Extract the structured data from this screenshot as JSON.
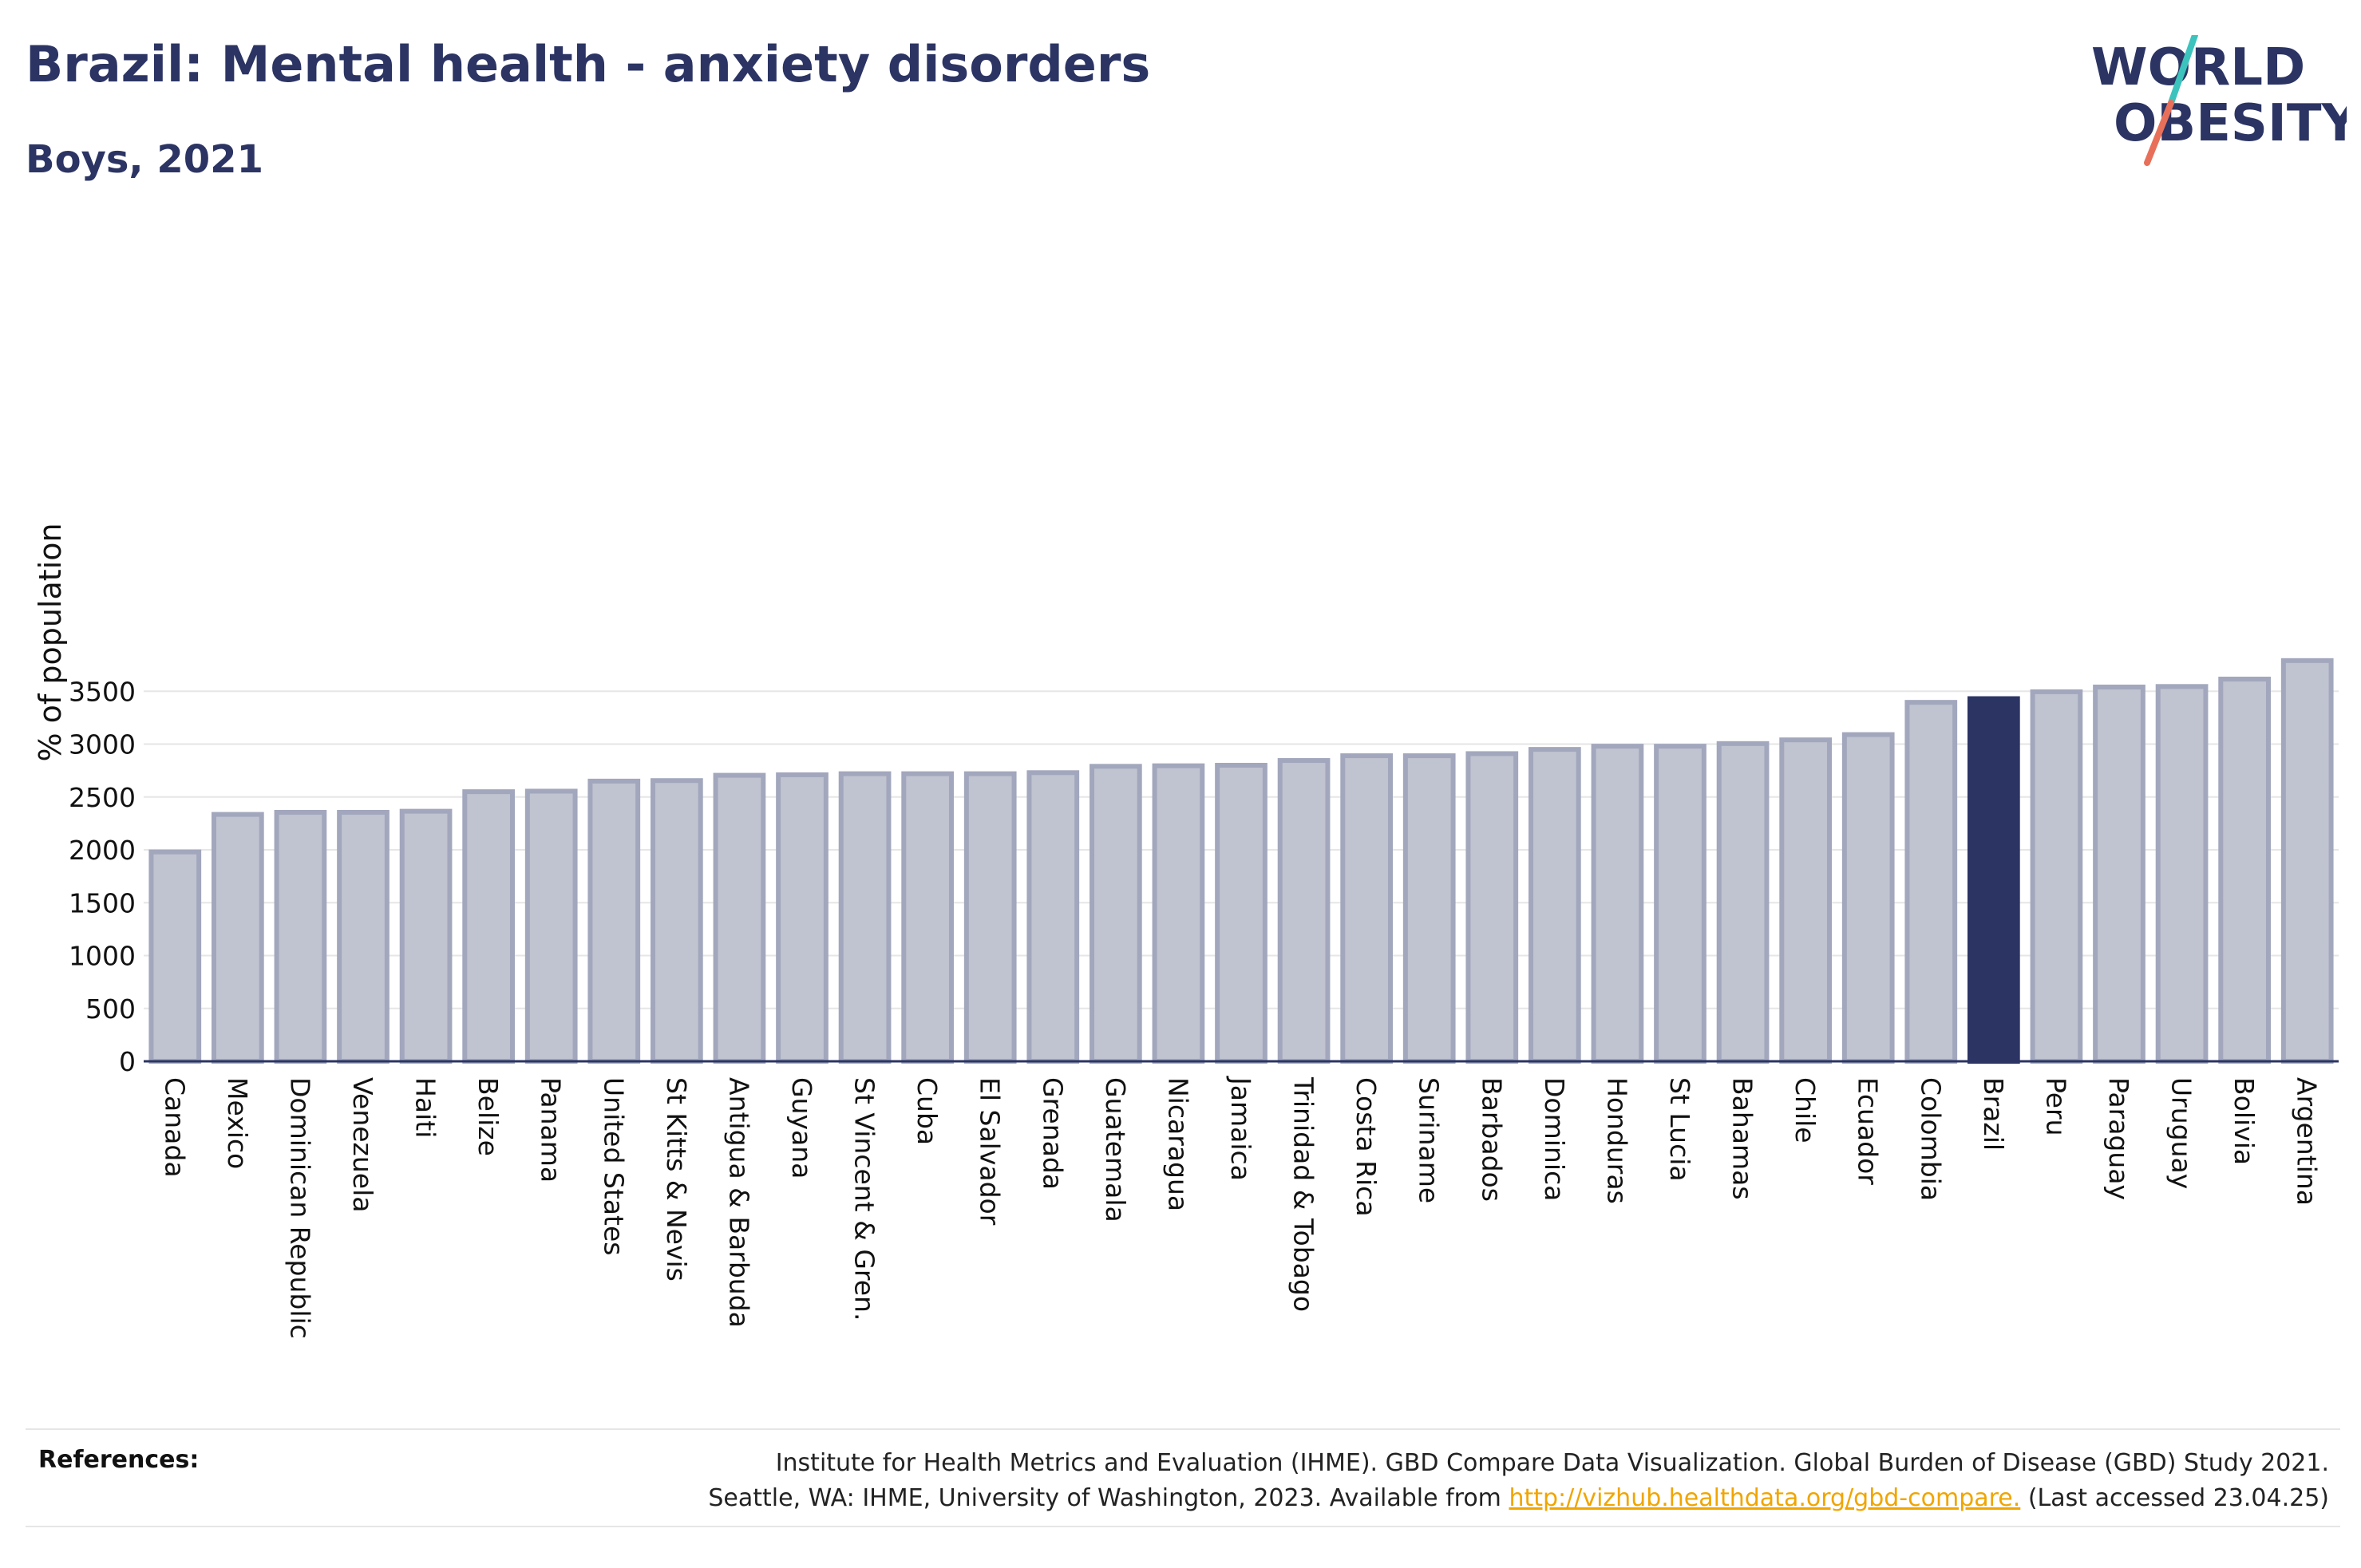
{
  "header": {
    "title": "Brazil: Mental health - anxiety disorders",
    "subtitle": "Boys, 2021"
  },
  "logo": {
    "line1": "WORLD",
    "line2": "OBESITY",
    "accent_top": "#3cc3bd",
    "accent_bottom": "#e8705a"
  },
  "colors": {
    "bar": "#c0c3d0",
    "bar_stroke": "#a2a7bd",
    "highlight": "#2b3463",
    "text": "#2b3463",
    "link": "#f0a500"
  },
  "chart_data": {
    "type": "bar",
    "title": "Brazil: Mental health - anxiety disorders",
    "subtitle": "Boys, 2021",
    "xlabel": "",
    "ylabel": "% of population",
    "ylim": [
      0,
      3800
    ],
    "yticks": [
      0,
      500,
      1000,
      1500,
      2000,
      2500,
      3000,
      3500
    ],
    "grid": true,
    "highlight": "Brazil",
    "categories": [
      "Canada",
      "Mexico",
      "Dominican Republic",
      "Venezuela",
      "Haiti",
      "Belize",
      "Panama",
      "United States",
      "St Kitts & Nevis",
      "Antigua & Barbuda",
      "Guyana",
      "St Vincent & Gren.",
      "Cuba",
      "El Salvador",
      "Grenada",
      "Guatemala",
      "Nicaragua",
      "Jamaica",
      "Trinidad & Tobago",
      "Costa Rica",
      "Suriname",
      "Barbados",
      "Dominica",
      "Honduras",
      "St Lucia",
      "Bahamas",
      "Chile",
      "Ecuador",
      "Colombia",
      "Brazil",
      "Peru",
      "Paraguay",
      "Uruguay",
      "Bolivia",
      "Argentina"
    ],
    "values": [
      1980,
      2335,
      2355,
      2355,
      2365,
      2550,
      2555,
      2650,
      2655,
      2705,
      2710,
      2720,
      2720,
      2720,
      2730,
      2790,
      2795,
      2800,
      2845,
      2890,
      2890,
      2910,
      2950,
      2980,
      2980,
      3005,
      3040,
      3090,
      3395,
      3430,
      3495,
      3540,
      3545,
      3615,
      3790
    ]
  },
  "references": {
    "label": "References:",
    "line1": "Institute for Health Metrics and Evaluation (IHME). GBD Compare Data Visualization. Global Burden of Disease (GBD) Study 2021.",
    "line2_prefix": "Seattle, WA: IHME, University of Washington, 2023. Available from ",
    "link": "http://vizhub.healthdata.org/gbd-compare.",
    "line2_suffix": " (Last accessed 23.04.25)"
  }
}
